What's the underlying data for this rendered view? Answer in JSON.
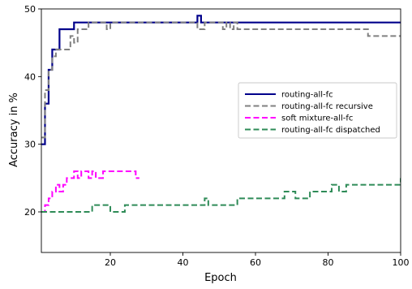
{
  "chart_data": {
    "type": "line",
    "xlabel": "Epoch",
    "ylabel": "Accuracy in %",
    "xlim": [
      1,
      100
    ],
    "ylim": [
      14,
      50
    ],
    "xticks": [
      20,
      40,
      60,
      80,
      100
    ],
    "yticks": [
      20,
      30,
      40,
      50
    ],
    "grid": false,
    "legend_position": "right",
    "series": [
      {
        "name": "routing-all-fc",
        "color": "#00008b",
        "dash": "solid",
        "x": [
          1,
          2,
          3,
          4,
          5,
          6,
          7,
          8,
          9,
          10,
          15,
          20,
          30,
          40,
          43,
          44,
          45,
          50,
          60,
          80,
          100
        ],
        "y": [
          30,
          36,
          41,
          44,
          44,
          47,
          47,
          47,
          47,
          48,
          48,
          48,
          48,
          48,
          48,
          49,
          48,
          48,
          48,
          48,
          48
        ]
      },
      {
        "name": "routing-all-fc recursive",
        "color": "#808080",
        "dash": "dashed",
        "x": [
          1,
          2,
          3,
          4,
          5,
          6,
          7,
          8,
          9,
          10,
          11,
          12,
          13,
          14,
          16,
          18,
          19,
          20,
          25,
          30,
          40,
          43,
          44,
          45,
          46,
          50,
          51,
          52,
          53,
          54,
          55,
          60,
          70,
          80,
          88,
          89,
          90,
          91,
          92,
          95,
          100
        ],
        "y": [
          31,
          38,
          41,
          43,
          44,
          44,
          44,
          44,
          46,
          45,
          47,
          47,
          47,
          48,
          48,
          48,
          47,
          48,
          48,
          48,
          48,
          48,
          47,
          47,
          48,
          48,
          47,
          48,
          47,
          48,
          47,
          47,
          47,
          47,
          47,
          47,
          47,
          46,
          46,
          46,
          46
        ]
      },
      {
        "name": "soft mixture-all-fc",
        "color": "#ff00ff",
        "dash": "dashed",
        "x": [
          1,
          2,
          3,
          4,
          5,
          6,
          7,
          8,
          9,
          10,
          11,
          12,
          13,
          14,
          15,
          16,
          18,
          20,
          22,
          24,
          26,
          27,
          28
        ],
        "y": [
          20,
          21,
          22,
          23,
          24,
          23,
          24,
          25,
          25,
          26,
          25,
          26,
          26,
          25,
          26,
          25,
          26,
          26,
          26,
          26,
          26,
          25,
          25
        ]
      },
      {
        "name": "routing-all-fc dispatched",
        "color": "#2e8b57",
        "dash": "dashed",
        "x": [
          1,
          5,
          10,
          12,
          15,
          18,
          20,
          22,
          24,
          26,
          28,
          30,
          40,
          44,
          45,
          46,
          47,
          48,
          50,
          55,
          57,
          60,
          64,
          65,
          68,
          70,
          71,
          72,
          75,
          80,
          81,
          83,
          85,
          90,
          95,
          99,
          100
        ],
        "y": [
          20,
          20,
          20,
          20,
          21,
          21,
          20,
          20,
          21,
          21,
          21,
          21,
          21,
          21,
          21,
          22,
          21,
          21,
          21,
          22,
          22,
          22,
          22,
          22,
          23,
          23,
          22,
          22,
          23,
          23,
          24,
          23,
          24,
          24,
          24,
          24,
          25
        ]
      }
    ]
  }
}
